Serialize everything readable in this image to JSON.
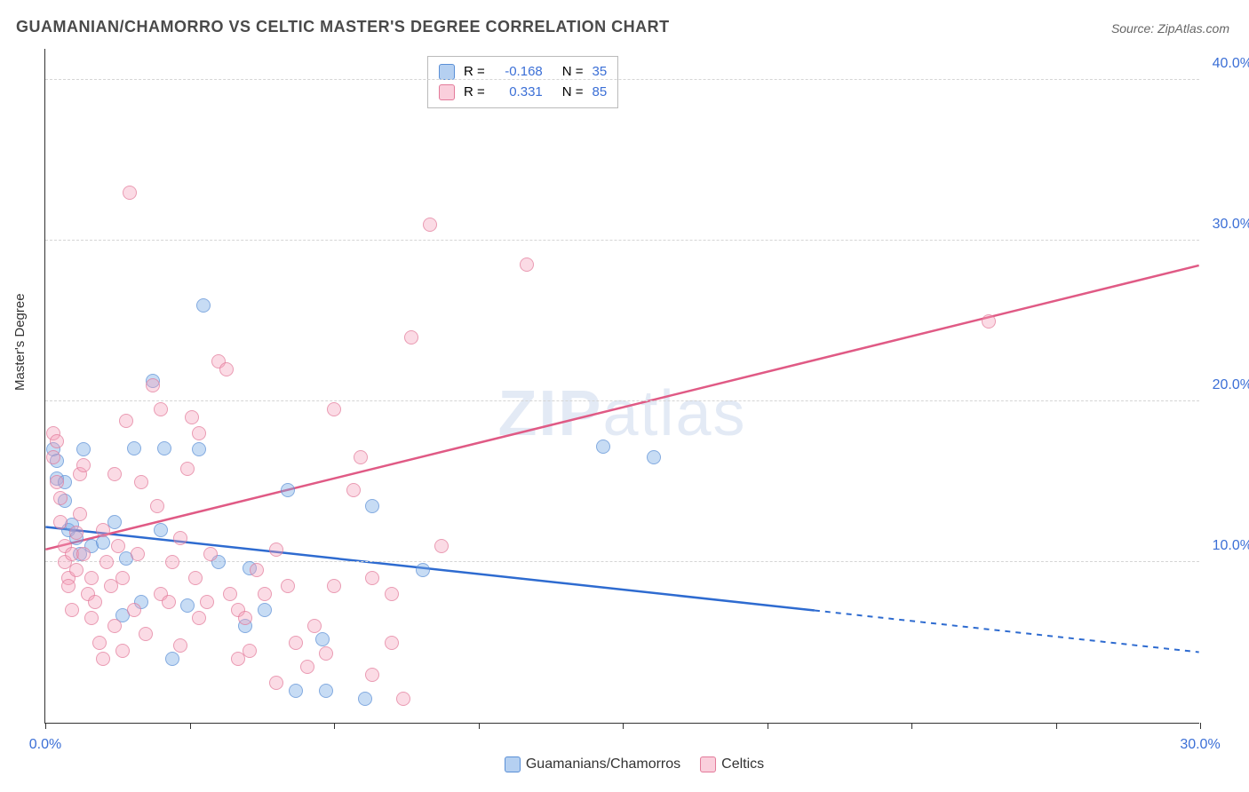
{
  "title": "GUAMANIAN/CHAMORRO VS CELTIC MASTER'S DEGREE CORRELATION CHART",
  "source": "Source: ZipAtlas.com",
  "watermark_bold": "ZIP",
  "watermark_thin": "atlas",
  "yaxis_label": "Master's Degree",
  "chart": {
    "type": "scatter",
    "xlim": [
      0,
      30
    ],
    "ylim": [
      0,
      42
    ],
    "x_ticks": [
      0,
      3.75,
      7.5,
      11.25,
      15,
      18.75,
      22.5,
      26.25,
      30
    ],
    "x_tick_labels": {
      "0": "0.0%",
      "30": "30.0%"
    },
    "y_gridlines": [
      10,
      20,
      30,
      40
    ],
    "y_tick_labels": {
      "10": "10.0%",
      "20": "20.0%",
      "30": "30.0%",
      "40": "40.0%"
    },
    "background_color": "#ffffff",
    "grid_color": "#d5d5d5",
    "colors": {
      "blue_fill": "rgba(120,170,230,0.55)",
      "blue_stroke": "#5a8fd6",
      "blue_line": "#2e6bd0",
      "pink_fill": "rgba(245,160,185,0.5)",
      "pink_stroke": "#e37a9a",
      "pink_line": "#e05a85",
      "axis_text": "#3b6fd6"
    },
    "marker_radius": 8,
    "line_width": 2.5,
    "series": [
      {
        "name": "Guamanians/Chamorros",
        "color": "blue",
        "r": -0.168,
        "n": 35,
        "trend": {
          "x1": 0,
          "y1": 12.2,
          "x2_solid": 20,
          "y2_solid": 7.0,
          "x2": 30,
          "y2": 4.4
        },
        "points": [
          [
            0.2,
            17.0
          ],
          [
            0.3,
            16.3
          ],
          [
            0.3,
            15.2
          ],
          [
            0.5,
            15.0
          ],
          [
            0.5,
            13.8
          ],
          [
            0.6,
            12.0
          ],
          [
            0.7,
            12.3
          ],
          [
            0.8,
            11.5
          ],
          [
            0.9,
            10.5
          ],
          [
            1.0,
            17.0
          ],
          [
            1.2,
            11.0
          ],
          [
            1.5,
            11.2
          ],
          [
            1.8,
            12.5
          ],
          [
            2.0,
            6.7
          ],
          [
            2.1,
            10.2
          ],
          [
            2.3,
            17.1
          ],
          [
            2.5,
            7.5
          ],
          [
            2.8,
            21.3
          ],
          [
            3.0,
            12.0
          ],
          [
            3.1,
            17.1
          ],
          [
            3.3,
            4.0
          ],
          [
            3.7,
            7.3
          ],
          [
            4.0,
            17.0
          ],
          [
            4.1,
            26.0
          ],
          [
            4.5,
            10.0
          ],
          [
            5.2,
            6.0
          ],
          [
            5.3,
            9.6
          ],
          [
            5.7,
            7.0
          ],
          [
            6.3,
            14.5
          ],
          [
            6.5,
            2.0
          ],
          [
            7.2,
            5.2
          ],
          [
            7.3,
            2.0
          ],
          [
            8.3,
            1.5
          ],
          [
            8.5,
            13.5
          ],
          [
            9.8,
            9.5
          ],
          [
            14.5,
            17.2
          ],
          [
            15.8,
            16.5
          ]
        ]
      },
      {
        "name": "Celtics",
        "color": "pink",
        "r": 0.331,
        "n": 85,
        "trend": {
          "x1": 0,
          "y1": 10.8,
          "x2_solid": 30,
          "y2_solid": 28.5,
          "x2": 30,
          "y2": 28.5
        },
        "points": [
          [
            0.2,
            18.0
          ],
          [
            0.2,
            16.5
          ],
          [
            0.3,
            15.0
          ],
          [
            0.3,
            17.5
          ],
          [
            0.4,
            14.0
          ],
          [
            0.4,
            12.5
          ],
          [
            0.5,
            11.0
          ],
          [
            0.5,
            10.0
          ],
          [
            0.6,
            9.0
          ],
          [
            0.6,
            8.5
          ],
          [
            0.7,
            7.0
          ],
          [
            0.7,
            10.5
          ],
          [
            0.8,
            9.5
          ],
          [
            0.8,
            11.8
          ],
          [
            0.9,
            13.0
          ],
          [
            0.9,
            15.5
          ],
          [
            1.0,
            16.0
          ],
          [
            1.0,
            10.5
          ],
          [
            1.1,
            8.0
          ],
          [
            1.2,
            6.5
          ],
          [
            1.2,
            9.0
          ],
          [
            1.3,
            7.5
          ],
          [
            1.4,
            5.0
          ],
          [
            1.5,
            12.0
          ],
          [
            1.5,
            4.0
          ],
          [
            1.6,
            10.0
          ],
          [
            1.7,
            8.5
          ],
          [
            1.8,
            15.5
          ],
          [
            1.8,
            6.0
          ],
          [
            1.9,
            11.0
          ],
          [
            2.0,
            4.5
          ],
          [
            2.0,
            9.0
          ],
          [
            2.1,
            18.8
          ],
          [
            2.2,
            33.0
          ],
          [
            2.3,
            7.0
          ],
          [
            2.4,
            10.5
          ],
          [
            2.5,
            15.0
          ],
          [
            2.6,
            5.5
          ],
          [
            2.8,
            21.0
          ],
          [
            2.9,
            13.5
          ],
          [
            3.0,
            19.5
          ],
          [
            3.0,
            8.0
          ],
          [
            3.2,
            7.5
          ],
          [
            3.3,
            10.0
          ],
          [
            3.5,
            11.5
          ],
          [
            3.5,
            4.8
          ],
          [
            3.7,
            15.8
          ],
          [
            3.8,
            19.0
          ],
          [
            3.9,
            9.0
          ],
          [
            4.0,
            6.5
          ],
          [
            4.0,
            18.0
          ],
          [
            4.2,
            7.5
          ],
          [
            4.3,
            10.5
          ],
          [
            4.5,
            22.5
          ],
          [
            4.7,
            22.0
          ],
          [
            4.8,
            8.0
          ],
          [
            5.0,
            4.0
          ],
          [
            5.0,
            7.0
          ],
          [
            5.2,
            6.5
          ],
          [
            5.3,
            4.5
          ],
          [
            5.5,
            9.5
          ],
          [
            5.7,
            8.0
          ],
          [
            6.0,
            2.5
          ],
          [
            6.0,
            10.8
          ],
          [
            6.3,
            8.5
          ],
          [
            6.5,
            5.0
          ],
          [
            6.8,
            3.5
          ],
          [
            7.0,
            6.0
          ],
          [
            7.3,
            4.3
          ],
          [
            7.5,
            19.5
          ],
          [
            7.5,
            8.5
          ],
          [
            8.0,
            14.5
          ],
          [
            8.2,
            16.5
          ],
          [
            8.5,
            9.0
          ],
          [
            8.5,
            3.0
          ],
          [
            9.0,
            5.0
          ],
          [
            9.0,
            8.0
          ],
          [
            9.3,
            1.5
          ],
          [
            9.5,
            24.0
          ],
          [
            10.0,
            31.0
          ],
          [
            10.3,
            11.0
          ],
          [
            12.5,
            28.5
          ],
          [
            24.5,
            25.0
          ]
        ]
      }
    ]
  },
  "legend_top": {
    "rows": [
      {
        "swatch": "blue",
        "r_label": "R =",
        "r_val": "-0.168",
        "n_label": "N =",
        "n_val": "35"
      },
      {
        "swatch": "pink",
        "r_label": "R =",
        "r_val": "0.331",
        "n_label": "N =",
        "n_val": "85"
      }
    ]
  },
  "legend_bottom": {
    "items": [
      {
        "swatch": "blue",
        "label": "Guamanians/Chamorros"
      },
      {
        "swatch": "pink",
        "label": "Celtics"
      }
    ]
  }
}
